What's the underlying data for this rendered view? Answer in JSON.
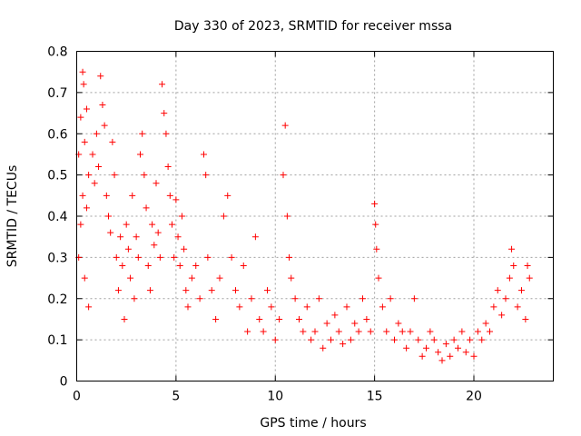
{
  "chart_data": {
    "type": "scatter",
    "title": "Day 330 of 2023, SRMTID for receiver mssa",
    "xlabel": "GPS time / hours",
    "ylabel": "SRMTID / TECUs",
    "xlim": [
      0,
      24
    ],
    "ylim": [
      0,
      0.8
    ],
    "x_ticks": [
      0,
      5,
      10,
      15,
      20
    ],
    "x_tick_labels": [
      "0",
      "5",
      "10",
      "15",
      "20"
    ],
    "y_ticks": [
      0,
      0.1,
      0.2,
      0.3,
      0.4,
      0.5,
      0.6,
      0.7,
      0.8
    ],
    "y_tick_labels": [
      "0",
      "0.1",
      "0.2",
      "0.3",
      "0.4",
      "0.5",
      "0.6",
      "0.7",
      "0.8"
    ],
    "grid": true,
    "marker": "+",
    "color": "#ff0000",
    "series": [
      {
        "name": "SRMTID",
        "points": [
          [
            0.3,
            0.75
          ],
          [
            0.35,
            0.72
          ],
          [
            0.2,
            0.64
          ],
          [
            0.5,
            0.66
          ],
          [
            0.1,
            0.55
          ],
          [
            0.4,
            0.58
          ],
          [
            0.6,
            0.5
          ],
          [
            0.3,
            0.45
          ],
          [
            0.2,
            0.38
          ],
          [
            0.5,
            0.42
          ],
          [
            0.1,
            0.3
          ],
          [
            0.4,
            0.25
          ],
          [
            0.6,
            0.18
          ],
          [
            0.8,
            0.55
          ],
          [
            0.9,
            0.48
          ],
          [
            1.0,
            0.6
          ],
          [
            1.1,
            0.52
          ],
          [
            1.2,
            0.74
          ],
          [
            1.3,
            0.67
          ],
          [
            1.4,
            0.62
          ],
          [
            1.5,
            0.45
          ],
          [
            1.6,
            0.4
          ],
          [
            1.7,
            0.36
          ],
          [
            1.8,
            0.58
          ],
          [
            1.9,
            0.5
          ],
          [
            2.0,
            0.3
          ],
          [
            2.1,
            0.22
          ],
          [
            2.2,
            0.35
          ],
          [
            2.3,
            0.28
          ],
          [
            2.4,
            0.15
          ],
          [
            2.5,
            0.38
          ],
          [
            2.6,
            0.32
          ],
          [
            2.7,
            0.25
          ],
          [
            2.8,
            0.45
          ],
          [
            2.9,
            0.2
          ],
          [
            3.0,
            0.35
          ],
          [
            3.1,
            0.3
          ],
          [
            3.2,
            0.55
          ],
          [
            3.3,
            0.6
          ],
          [
            3.4,
            0.5
          ],
          [
            3.5,
            0.42
          ],
          [
            3.6,
            0.28
          ],
          [
            3.7,
            0.22
          ],
          [
            3.8,
            0.38
          ],
          [
            3.9,
            0.33
          ],
          [
            4.0,
            0.48
          ],
          [
            4.1,
            0.36
          ],
          [
            4.2,
            0.3
          ],
          [
            4.3,
            0.72
          ],
          [
            4.4,
            0.65
          ],
          [
            4.5,
            0.6
          ],
          [
            4.6,
            0.52
          ],
          [
            4.7,
            0.45
          ],
          [
            4.8,
            0.38
          ],
          [
            4.9,
            0.3
          ],
          [
            5.0,
            0.44
          ],
          [
            5.1,
            0.35
          ],
          [
            5.2,
            0.28
          ],
          [
            5.3,
            0.4
          ],
          [
            5.4,
            0.32
          ],
          [
            5.5,
            0.22
          ],
          [
            5.6,
            0.18
          ],
          [
            5.8,
            0.25
          ],
          [
            6.0,
            0.28
          ],
          [
            6.2,
            0.2
          ],
          [
            6.4,
            0.55
          ],
          [
            6.5,
            0.5
          ],
          [
            6.6,
            0.3
          ],
          [
            6.8,
            0.22
          ],
          [
            7.0,
            0.15
          ],
          [
            7.2,
            0.25
          ],
          [
            7.4,
            0.4
          ],
          [
            7.6,
            0.45
          ],
          [
            7.8,
            0.3
          ],
          [
            8.0,
            0.22
          ],
          [
            8.2,
            0.18
          ],
          [
            8.4,
            0.28
          ],
          [
            8.6,
            0.12
          ],
          [
            8.8,
            0.2
          ],
          [
            9.0,
            0.35
          ],
          [
            9.2,
            0.15
          ],
          [
            9.4,
            0.12
          ],
          [
            9.6,
            0.22
          ],
          [
            9.8,
            0.18
          ],
          [
            10.0,
            0.1
          ],
          [
            10.2,
            0.15
          ],
          [
            10.4,
            0.5
          ],
          [
            10.5,
            0.62
          ],
          [
            10.6,
            0.4
          ],
          [
            10.7,
            0.3
          ],
          [
            10.8,
            0.25
          ],
          [
            11.0,
            0.2
          ],
          [
            11.2,
            0.15
          ],
          [
            11.4,
            0.12
          ],
          [
            11.6,
            0.18
          ],
          [
            11.8,
            0.1
          ],
          [
            12.0,
            0.12
          ],
          [
            12.2,
            0.2
          ],
          [
            12.4,
            0.08
          ],
          [
            12.6,
            0.14
          ],
          [
            12.8,
            0.1
          ],
          [
            13.0,
            0.16
          ],
          [
            13.2,
            0.12
          ],
          [
            13.4,
            0.09
          ],
          [
            13.6,
            0.18
          ],
          [
            13.8,
            0.1
          ],
          [
            14.0,
            0.14
          ],
          [
            14.2,
            0.12
          ],
          [
            14.4,
            0.2
          ],
          [
            14.6,
            0.15
          ],
          [
            14.8,
            0.12
          ],
          [
            15.0,
            0.43
          ],
          [
            15.05,
            0.38
          ],
          [
            15.1,
            0.32
          ],
          [
            15.2,
            0.25
          ],
          [
            15.4,
            0.18
          ],
          [
            15.6,
            0.12
          ],
          [
            15.8,
            0.2
          ],
          [
            16.0,
            0.1
          ],
          [
            16.2,
            0.14
          ],
          [
            16.4,
            0.12
          ],
          [
            16.6,
            0.08
          ],
          [
            16.8,
            0.12
          ],
          [
            17.0,
            0.2
          ],
          [
            17.2,
            0.1
          ],
          [
            17.4,
            0.06
          ],
          [
            17.6,
            0.08
          ],
          [
            17.8,
            0.12
          ],
          [
            18.0,
            0.1
          ],
          [
            18.2,
            0.07
          ],
          [
            18.4,
            0.05
          ],
          [
            18.6,
            0.09
          ],
          [
            18.8,
            0.06
          ],
          [
            19.0,
            0.1
          ],
          [
            19.2,
            0.08
          ],
          [
            19.4,
            0.12
          ],
          [
            19.6,
            0.07
          ],
          [
            19.8,
            0.1
          ],
          [
            20.0,
            0.06
          ],
          [
            20.2,
            0.12
          ],
          [
            20.4,
            0.1
          ],
          [
            20.6,
            0.14
          ],
          [
            20.8,
            0.12
          ],
          [
            21.0,
            0.18
          ],
          [
            21.2,
            0.22
          ],
          [
            21.4,
            0.16
          ],
          [
            21.6,
            0.2
          ],
          [
            21.8,
            0.25
          ],
          [
            21.9,
            0.32
          ],
          [
            22.0,
            0.28
          ],
          [
            22.2,
            0.18
          ],
          [
            22.4,
            0.22
          ],
          [
            22.6,
            0.15
          ],
          [
            22.7,
            0.28
          ],
          [
            22.8,
            0.25
          ]
        ]
      }
    ]
  }
}
